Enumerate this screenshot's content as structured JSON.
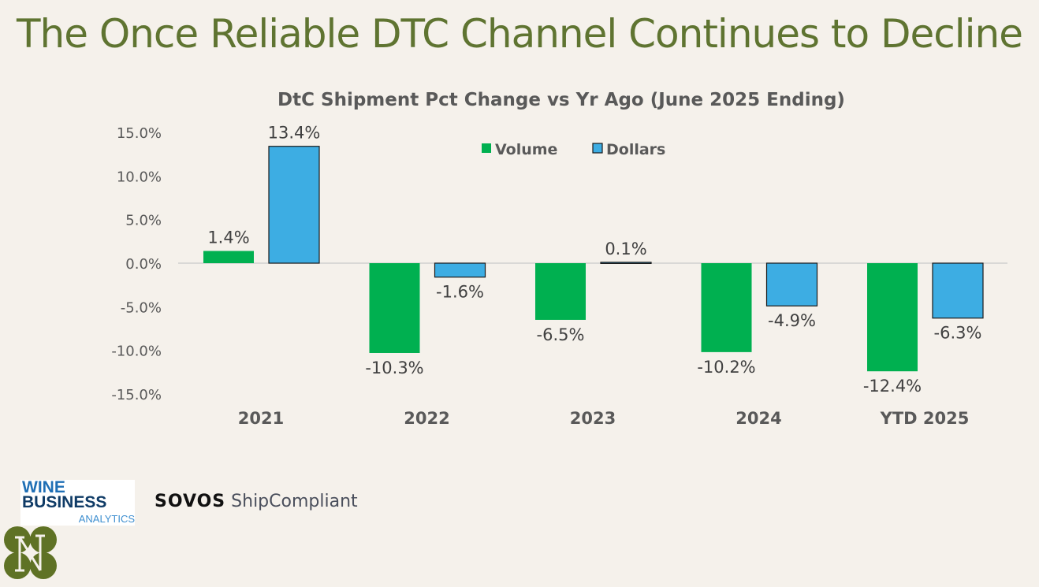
{
  "page": {
    "title": "The Once Reliable DTC Channel Continues to Decline"
  },
  "logos": {
    "wine_business": {
      "line1": "WINE",
      "line2": "BUSINESS",
      "line3": "ANALYTICS"
    },
    "sovos": {
      "brand": "SOVOS",
      "product": "ShipCompliant"
    },
    "n_logo": "N"
  },
  "colors": {
    "volume": "#00b050",
    "dollars": "#3dade3",
    "title": "#5f7431",
    "axis_text": "#595959"
  },
  "chart_data": {
    "type": "bar",
    "title": "DtC Shipment Pct Change vs Yr Ago (June 2025 Ending)",
    "categories": [
      "2021",
      "2022",
      "2023",
      "2024",
      "YTD 2025"
    ],
    "series": [
      {
        "name": "Volume",
        "values": [
          1.4,
          -10.3,
          -6.5,
          -10.2,
          -12.4
        ],
        "labels": [
          "1.4%",
          "-10.3%",
          "-6.5%",
          "-10.2%",
          "-12.4%"
        ]
      },
      {
        "name": "Dollars",
        "values": [
          13.4,
          -1.6,
          0.1,
          -4.9,
          -6.3
        ],
        "labels": [
          "13.4%",
          "-1.6%",
          "0.1%",
          "-4.9%",
          "-6.3%"
        ]
      }
    ],
    "ylim": [
      -15,
      15
    ],
    "yticks": [
      15,
      10,
      5,
      0,
      -5,
      -10,
      -15
    ],
    "ytick_labels": [
      "15.0%",
      "10.0%",
      "5.0%",
      "0.0%",
      "-5.0%",
      "-10.0%",
      "-15.0%"
    ],
    "xlabel": "",
    "ylabel": "",
    "grid": false,
    "legend": "top-center"
  }
}
